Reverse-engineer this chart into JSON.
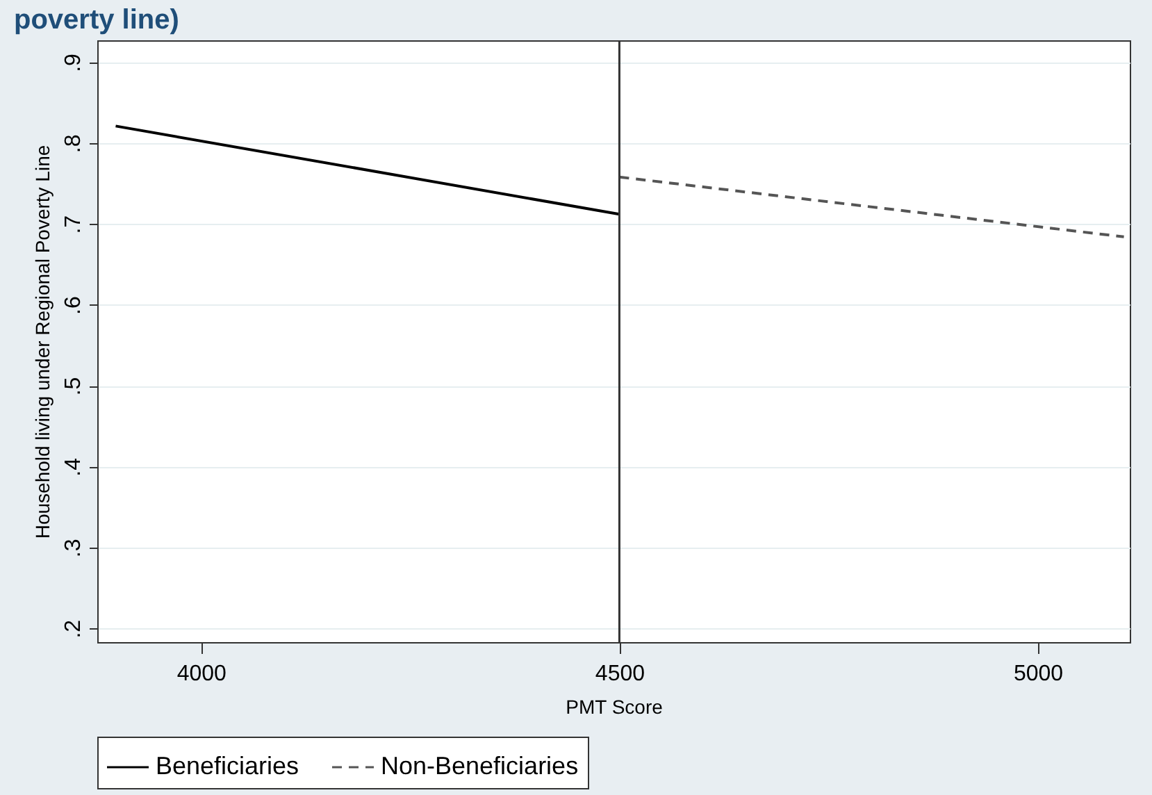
{
  "chart_data": {
    "type": "line",
    "title": "poverty line)",
    "xlabel": "PMT Score",
    "ylabel": "Household living under Regional Poverty Line",
    "series": [
      {
        "name": "Beneficiaries",
        "color": "#000000",
        "line_style": "solid",
        "x": [
          3898,
          4500
        ],
        "values": [
          0.821,
          0.712
        ]
      },
      {
        "name": "Non-Beneficiaries",
        "color": "#555555",
        "line_style": "dashed",
        "x": [
          4500,
          5103
        ],
        "values": [
          0.758,
          0.684
        ]
      }
    ],
    "xlim": [
      3876,
      5110
    ],
    "xticks": [
      4000,
      4500,
      5000
    ],
    "ylim": [
      0.183,
      0.927
    ],
    "yticks": [
      {
        "value": 0.2,
        "label": ".2"
      },
      {
        "value": 0.3,
        "label": ".3"
      },
      {
        "value": 0.4,
        "label": ".4"
      },
      {
        "value": 0.5,
        "label": ".5"
      },
      {
        "value": 0.6,
        "label": ".6"
      },
      {
        "value": 0.7,
        "label": ".7"
      },
      {
        "value": 0.8,
        "label": ".8"
      },
      {
        "value": 0.9,
        "label": ".9"
      }
    ],
    "ref_lines": [
      {
        "axis": "x",
        "value": 4500,
        "color": "#333333"
      }
    ],
    "grid": "y",
    "legend": "bottom"
  }
}
